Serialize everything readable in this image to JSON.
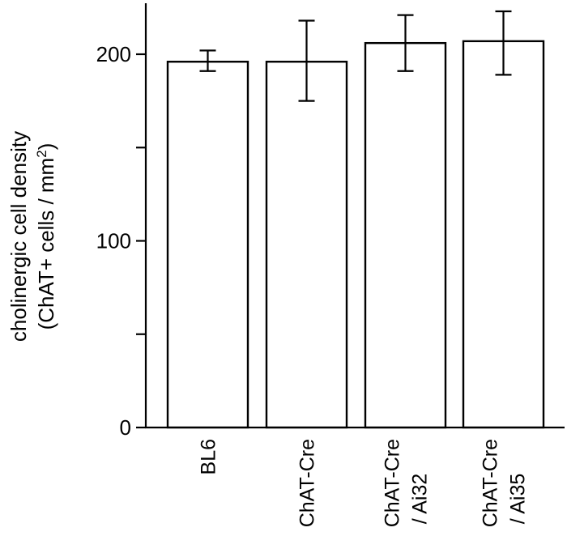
{
  "chart_data": {
    "type": "bar",
    "categories": [
      [
        "BL6"
      ],
      [
        "ChAT-Cre"
      ],
      [
        "ChAT-Cre",
        "/ Ai32"
      ],
      [
        "ChAT-Cre",
        "/ Ai35"
      ]
    ],
    "values": [
      196,
      196,
      206,
      207
    ],
    "error_bars": [
      [
        191,
        202
      ],
      [
        175,
        218
      ],
      [
        191,
        221
      ],
      [
        189,
        223
      ]
    ],
    "ylabel_lines": [
      "cholinergic cell density",
      "(ChAT+ cells / mm",
      "2",
      ")"
    ],
    "ylim": [
      0,
      228
    ],
    "y_ticks": [
      0,
      50,
      100,
      150,
      200
    ],
    "y_tick_labels": [
      "0",
      "",
      "100",
      "",
      "200"
    ],
    "bar_fill": "#ffffff",
    "stroke_color": "#000000",
    "grid": false,
    "legend": "none"
  }
}
